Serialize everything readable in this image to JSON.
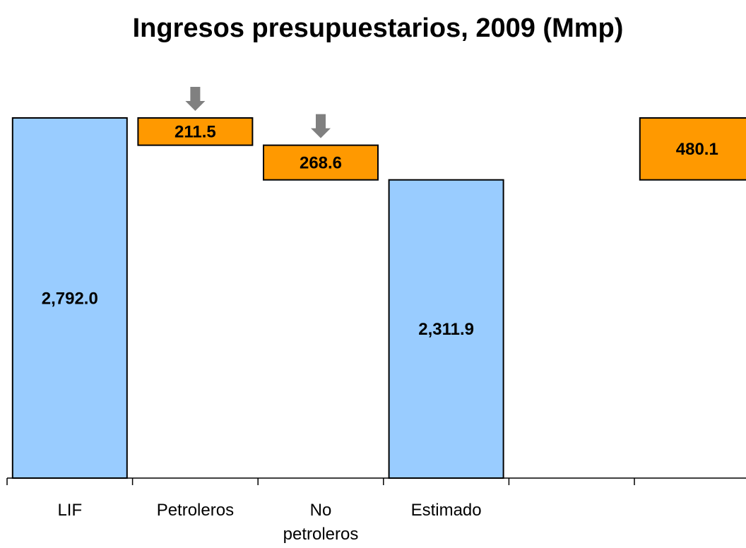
{
  "chart_data": {
    "type": "waterfall",
    "title": "Ingresos presupuestarios, 2009 (Mmp)",
    "categories": [
      "LIF",
      "Petroleros",
      "No petroleros",
      "Estimado",
      null,
      null
    ],
    "values": [
      2792.0,
      211.5,
      268.6,
      2311.9,
      null,
      480.1
    ],
    "value_labels": [
      "2,792.0",
      "211.5",
      "268.6",
      "2,311.9",
      null,
      "480.1"
    ],
    "measures": [
      "total",
      "decrease",
      "decrease",
      "total",
      null,
      "increase"
    ],
    "colors": [
      "#99ccff",
      "#ff9900",
      "#ff9900",
      "#99ccff",
      null,
      "#ff9900"
    ]
  }
}
